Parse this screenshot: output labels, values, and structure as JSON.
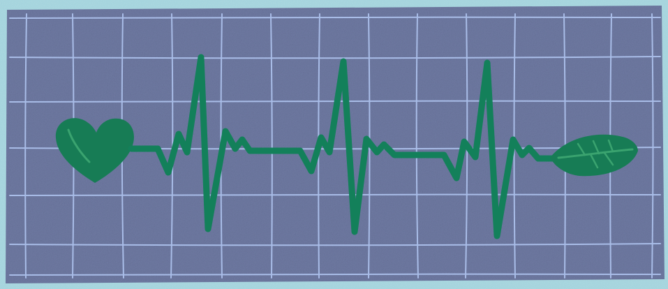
{
  "illustration": {
    "subject": "heartbeat-line-from-heart-to-leaf",
    "icons": [
      "heart-icon",
      "leaf-icon"
    ],
    "colors": {
      "background": "#9fd2dc",
      "panel": "#6f7aa3",
      "grid": "#a9bde8",
      "line": "#13805a",
      "heart": "#177c55",
      "leaf": "#177c55",
      "vein": "#3aa36f"
    }
  }
}
